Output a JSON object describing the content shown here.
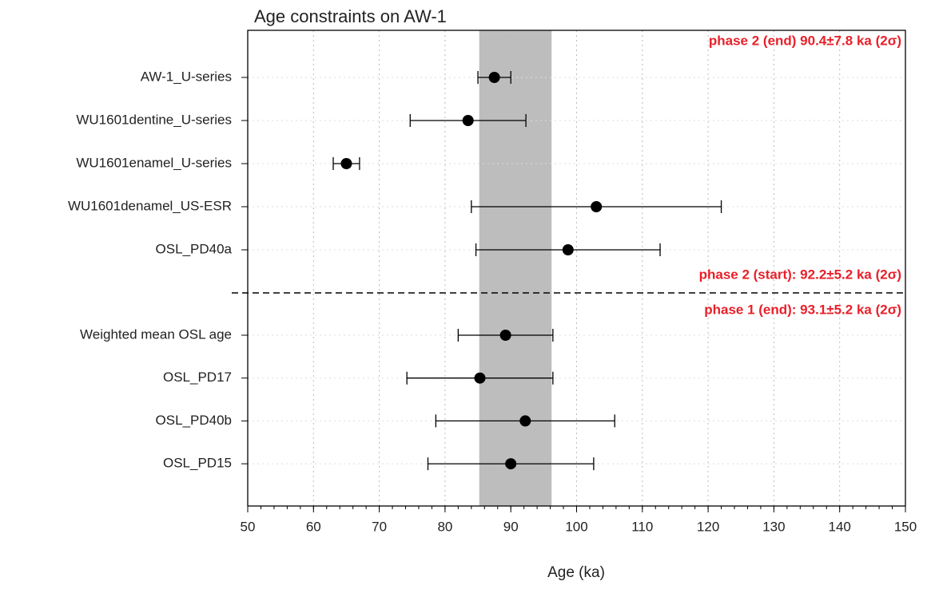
{
  "chart_data": {
    "type": "errorbar",
    "title": "Age constraints on AW-1",
    "x_label": "Age (ka)",
    "categories": [
      "AW-1_U-series",
      "WU1601dentine_U-series",
      "WU1601enamel_U-series",
      "WU1601denamel_US-ESR",
      "OSL_PD40a",
      "Weighted mean OSL age",
      "OSL_PD17",
      "OSL_PD40b",
      "OSL_PD15"
    ],
    "values": [
      87.5,
      83.5,
      65,
      103,
      98.7,
      89.2,
      85.3,
      92.2,
      90
    ],
    "errors": [
      2.5,
      8.8,
      2,
      19,
      14,
      7.2,
      11.1,
      13.6,
      12.6
    ],
    "color": "#000000",
    "shaded_range": [
      85.2,
      96.2
    ],
    "shaded_color": "#bdbdbd",
    "xlim": [
      50,
      150
    ],
    "xticks": [
      50,
      60,
      70,
      80,
      90,
      100,
      110,
      120,
      130,
      140,
      150
    ],
    "x_minor_step": 2,
    "grid": true,
    "annotations": [
      "phase 2 (end) 90.4±7.8 ka (2σ)",
      "phase 2 (start): 92.2±5.2 ka (2σ)",
      "phase 1 (end): 93.1±5.2 ka (2σ)"
    ],
    "annotation_color": "#e8202a"
  }
}
